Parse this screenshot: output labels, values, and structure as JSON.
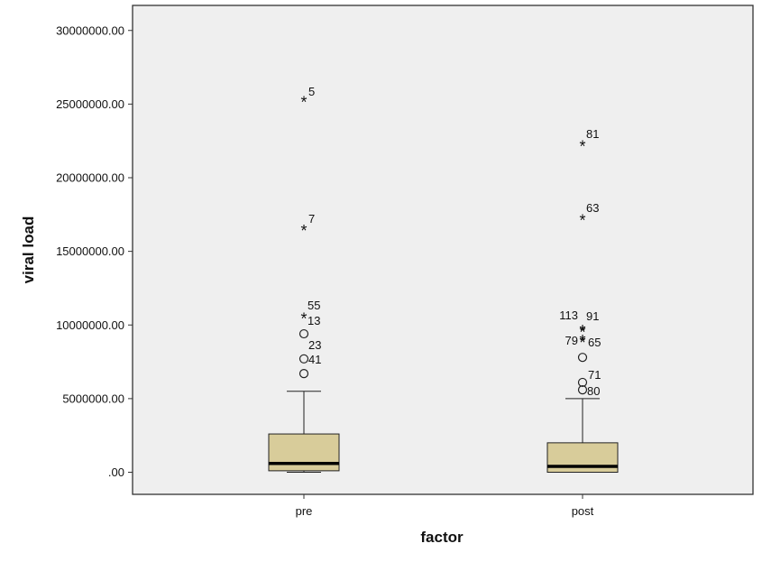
{
  "chart_data": {
    "type": "boxplot",
    "xlabel": "factor",
    "ylabel": "viral load",
    "ylim": [
      -1500000,
      31700000
    ],
    "yticks": [
      {
        "value": 0,
        "label": ".00"
      },
      {
        "value": 5000000,
        "label": "5000000.00"
      },
      {
        "value": 10000000,
        "label": "10000000.00"
      },
      {
        "value": 15000000,
        "label": "15000000.00"
      },
      {
        "value": 20000000,
        "label": "20000000.00"
      },
      {
        "value": 25000000,
        "label": "25000000.00"
      },
      {
        "value": 30000000,
        "label": "30000000.00"
      }
    ],
    "grid": false,
    "box_color": "#d8cc9a",
    "plot_background": "#efefef",
    "groups": [
      {
        "category": "pre",
        "min": 0,
        "q1": 100000,
        "median": 600000,
        "q3": 2600000,
        "whisker_high": 5500000,
        "outliers": [
          {
            "value": 6700000,
            "label": "41",
            "marker": "circle"
          },
          {
            "value": 7700000,
            "label": "23",
            "marker": "circle"
          },
          {
            "value": 9400000,
            "label": "13",
            "marker": "circle"
          },
          {
            "value": 10400000,
            "label": "55",
            "marker": "star"
          },
          {
            "value": 16400000,
            "label": "7",
            "marker": "star"
          },
          {
            "value": 25100000,
            "label": "5",
            "marker": "star"
          }
        ]
      },
      {
        "category": "post",
        "min": 0,
        "q1": 0,
        "median": 400000,
        "q3": 2000000,
        "whisker_high": 5000000,
        "outliers": [
          {
            "value": 5600000,
            "label": "80",
            "marker": "circle"
          },
          {
            "value": 6100000,
            "label": "71",
            "marker": "circle"
          },
          {
            "value": 7800000,
            "label": "",
            "marker": "circle"
          },
          {
            "value": 8900000,
            "label": "79",
            "marker": "star"
          },
          {
            "value": 8800000,
            "label": "65",
            "marker": "star"
          },
          {
            "value": 9500000,
            "label": "113",
            "marker": "star"
          },
          {
            "value": 9600000,
            "label": "91",
            "marker": "star"
          },
          {
            "value": 17100000,
            "label": "63",
            "marker": "star"
          },
          {
            "value": 22100000,
            "label": "81",
            "marker": "star"
          }
        ]
      }
    ]
  }
}
